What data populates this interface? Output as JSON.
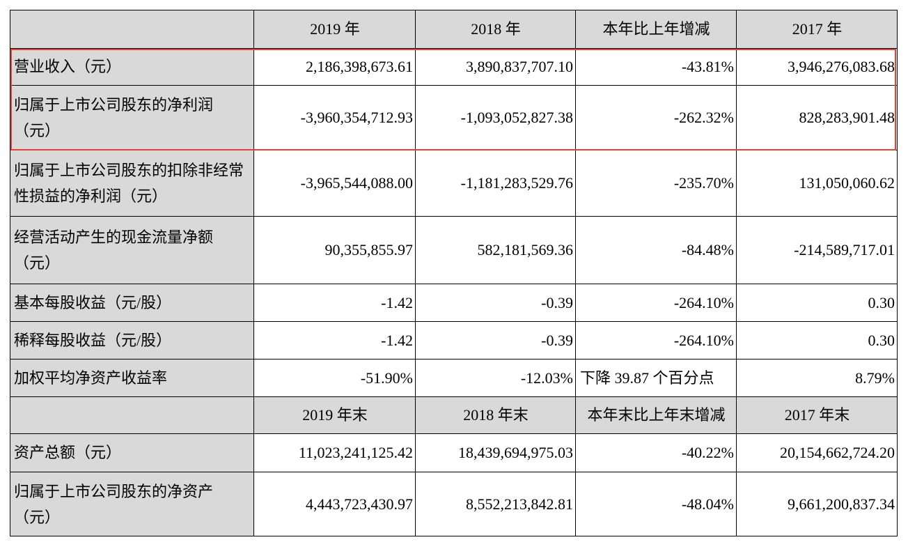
{
  "header_main": [
    "",
    "2019 年",
    "2018 年",
    "本年比上年增减",
    "2017 年"
  ],
  "rows_main": [
    [
      "营业收入（元）",
      "2,186,398,673.61",
      "3,890,837,707.10",
      "-43.81%",
      "3,946,276,083.68"
    ],
    [
      "归属于上市公司股东的净利润（元）",
      "-3,960,354,712.93",
      "-1,093,052,827.38",
      "-262.32%",
      "828,283,901.48"
    ],
    [
      "归属于上市公司股东的扣除非经常性损益的净利润（元）",
      "-3,965,544,088.00",
      "-1,181,283,529.76",
      "-235.70%",
      "131,050,060.62"
    ],
    [
      "经营活动产生的现金流量净额（元）",
      "90,355,855.97",
      "582,181,569.36",
      "-84.48%",
      "-214,589,717.01"
    ],
    [
      "基本每股收益（元/股）",
      "-1.42",
      "-0.39",
      "-264.10%",
      "0.30"
    ],
    [
      "稀释每股收益（元/股）",
      "-1.42",
      "-0.39",
      "-264.10%",
      "0.30"
    ],
    [
      "加权平均净资产收益率",
      "-51.90%",
      "-12.03%",
      "下降 39.87 个百分点",
      "8.79%"
    ]
  ],
  "header_end": [
    "",
    "2019 年末",
    "2018 年末",
    "本年末比上年末增减",
    "2017 年末"
  ],
  "rows_end": [
    [
      "资产总额（元）",
      "11,023,241,125.42",
      "18,439,694,975.03",
      "-40.22%",
      "20,154,662,724.20"
    ],
    [
      "归属于上市公司股东的净资产（元）",
      "4,443,723,430.97",
      "8,552,213,842.81",
      "-48.04%",
      "9,661,200,837.34"
    ]
  ],
  "highlight_color": "#e34234",
  "label_bg": "#d9d9d9"
}
